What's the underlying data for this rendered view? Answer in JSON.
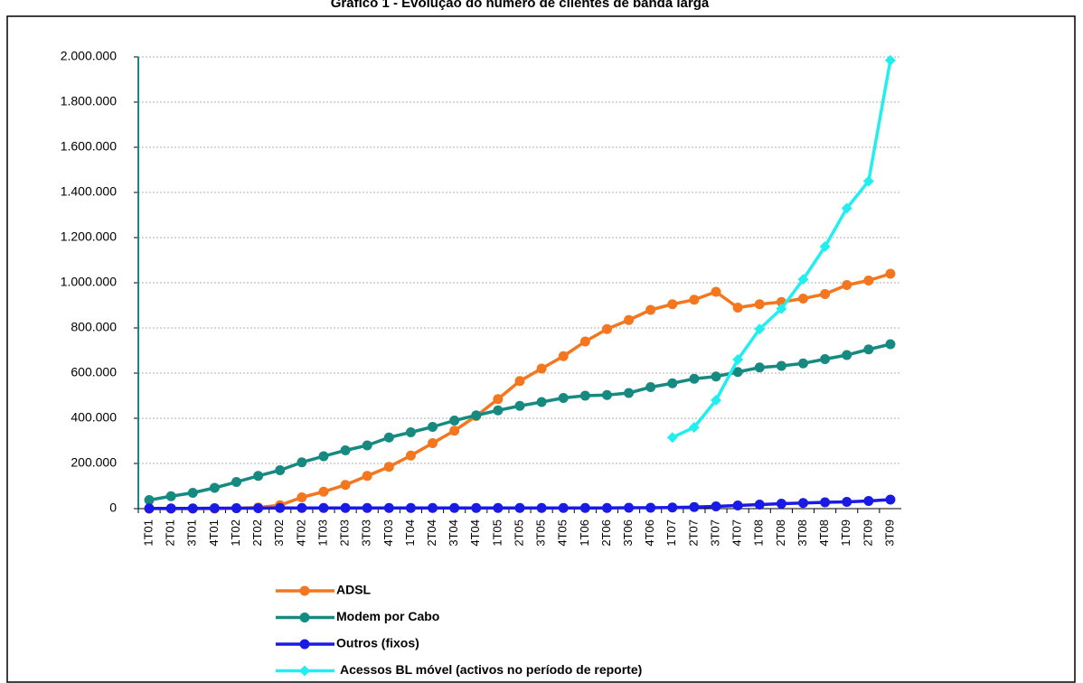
{
  "chart_data": {
    "type": "line",
    "title": "Gráfico 1 - Evolução do número de clientes de banda larga",
    "categories": [
      "1T01",
      "2T01",
      "3T01",
      "4T01",
      "1T02",
      "2T02",
      "3T02",
      "4T02",
      "1T03",
      "2T03",
      "3T03",
      "4T03",
      "1T04",
      "2T04",
      "3T04",
      "4T04",
      "1T05",
      "2T05",
      "3T05",
      "4T05",
      "1T06",
      "2T06",
      "3T06",
      "4T06",
      "1T07",
      "2T07",
      "3T07",
      "4T07",
      "1T08",
      "2T08",
      "3T08",
      "4T08",
      "1T09",
      "2T09",
      "3T09"
    ],
    "series": [
      {
        "name": "ADSL",
        "color": "#f4761e",
        "marker": "circle",
        "values": [
          0,
          0,
          0,
          0,
          2000,
          5000,
          15000,
          50000,
          75000,
          105000,
          145000,
          185000,
          235000,
          290000,
          345000,
          410000,
          485000,
          565000,
          620000,
          675000,
          740000,
          795000,
          835000,
          880000,
          905000,
          925000,
          960000,
          890000,
          905000,
          915000,
          930000,
          950000,
          990000,
          1010000,
          1040000
        ]
      },
      {
        "name": "Modem por Cabo",
        "color": "#168a80",
        "marker": "circle",
        "values": [
          38000,
          55000,
          70000,
          92000,
          118000,
          145000,
          170000,
          205000,
          232000,
          258000,
          280000,
          315000,
          338000,
          362000,
          390000,
          413000,
          435000,
          455000,
          472000,
          490000,
          500000,
          503000,
          512000,
          538000,
          555000,
          575000,
          585000,
          605000,
          625000,
          632000,
          643000,
          662000,
          680000,
          705000,
          728000
        ]
      },
      {
        "name": "Outros (fixos)",
        "color": "#1a1ae6",
        "marker": "circle",
        "values": [
          1000,
          1000,
          1000,
          2000,
          2000,
          2000,
          3000,
          3000,
          3000,
          3000,
          3000,
          3000,
          3000,
          3000,
          3000,
          3000,
          3000,
          3000,
          3000,
          3000,
          3000,
          3000,
          4000,
          4000,
          5000,
          7000,
          10000,
          14000,
          18000,
          22000,
          25000,
          28000,
          30000,
          34000,
          40000
        ]
      },
      {
        "name": "Acessos BL móvel (activos no período de reporte)",
        "color": "#22eef0",
        "marker": "diamond",
        "values": [
          null,
          null,
          null,
          null,
          null,
          null,
          null,
          null,
          null,
          null,
          null,
          null,
          null,
          null,
          null,
          null,
          null,
          null,
          null,
          null,
          null,
          null,
          null,
          null,
          315000,
          360000,
          480000,
          660000,
          795000,
          885000,
          1015000,
          1160000,
          1330000,
          1450000,
          1985000
        ]
      }
    ],
    "ylim": [
      0,
      2000000
    ],
    "yticks": [
      0,
      {
        "value": 200000,
        "label": "200.000"
      },
      {
        "value": 400000,
        "label": "400.000"
      },
      {
        "value": 600000,
        "label": "600.000"
      },
      {
        "value": 800000,
        "label": "800.000"
      },
      {
        "value": 1000000,
        "label": "1.000.000"
      },
      {
        "value": 1200000,
        "label": "1.200.000"
      },
      {
        "value": 1400000,
        "label": "1.400.000"
      },
      {
        "value": 1600000,
        "label": "1.600.000"
      },
      {
        "value": 1800000,
        "label": "1.800.000"
      },
      {
        "value": 2000000,
        "label": "2.000.000"
      }
    ],
    "grid": true,
    "legend": "bottom"
  }
}
